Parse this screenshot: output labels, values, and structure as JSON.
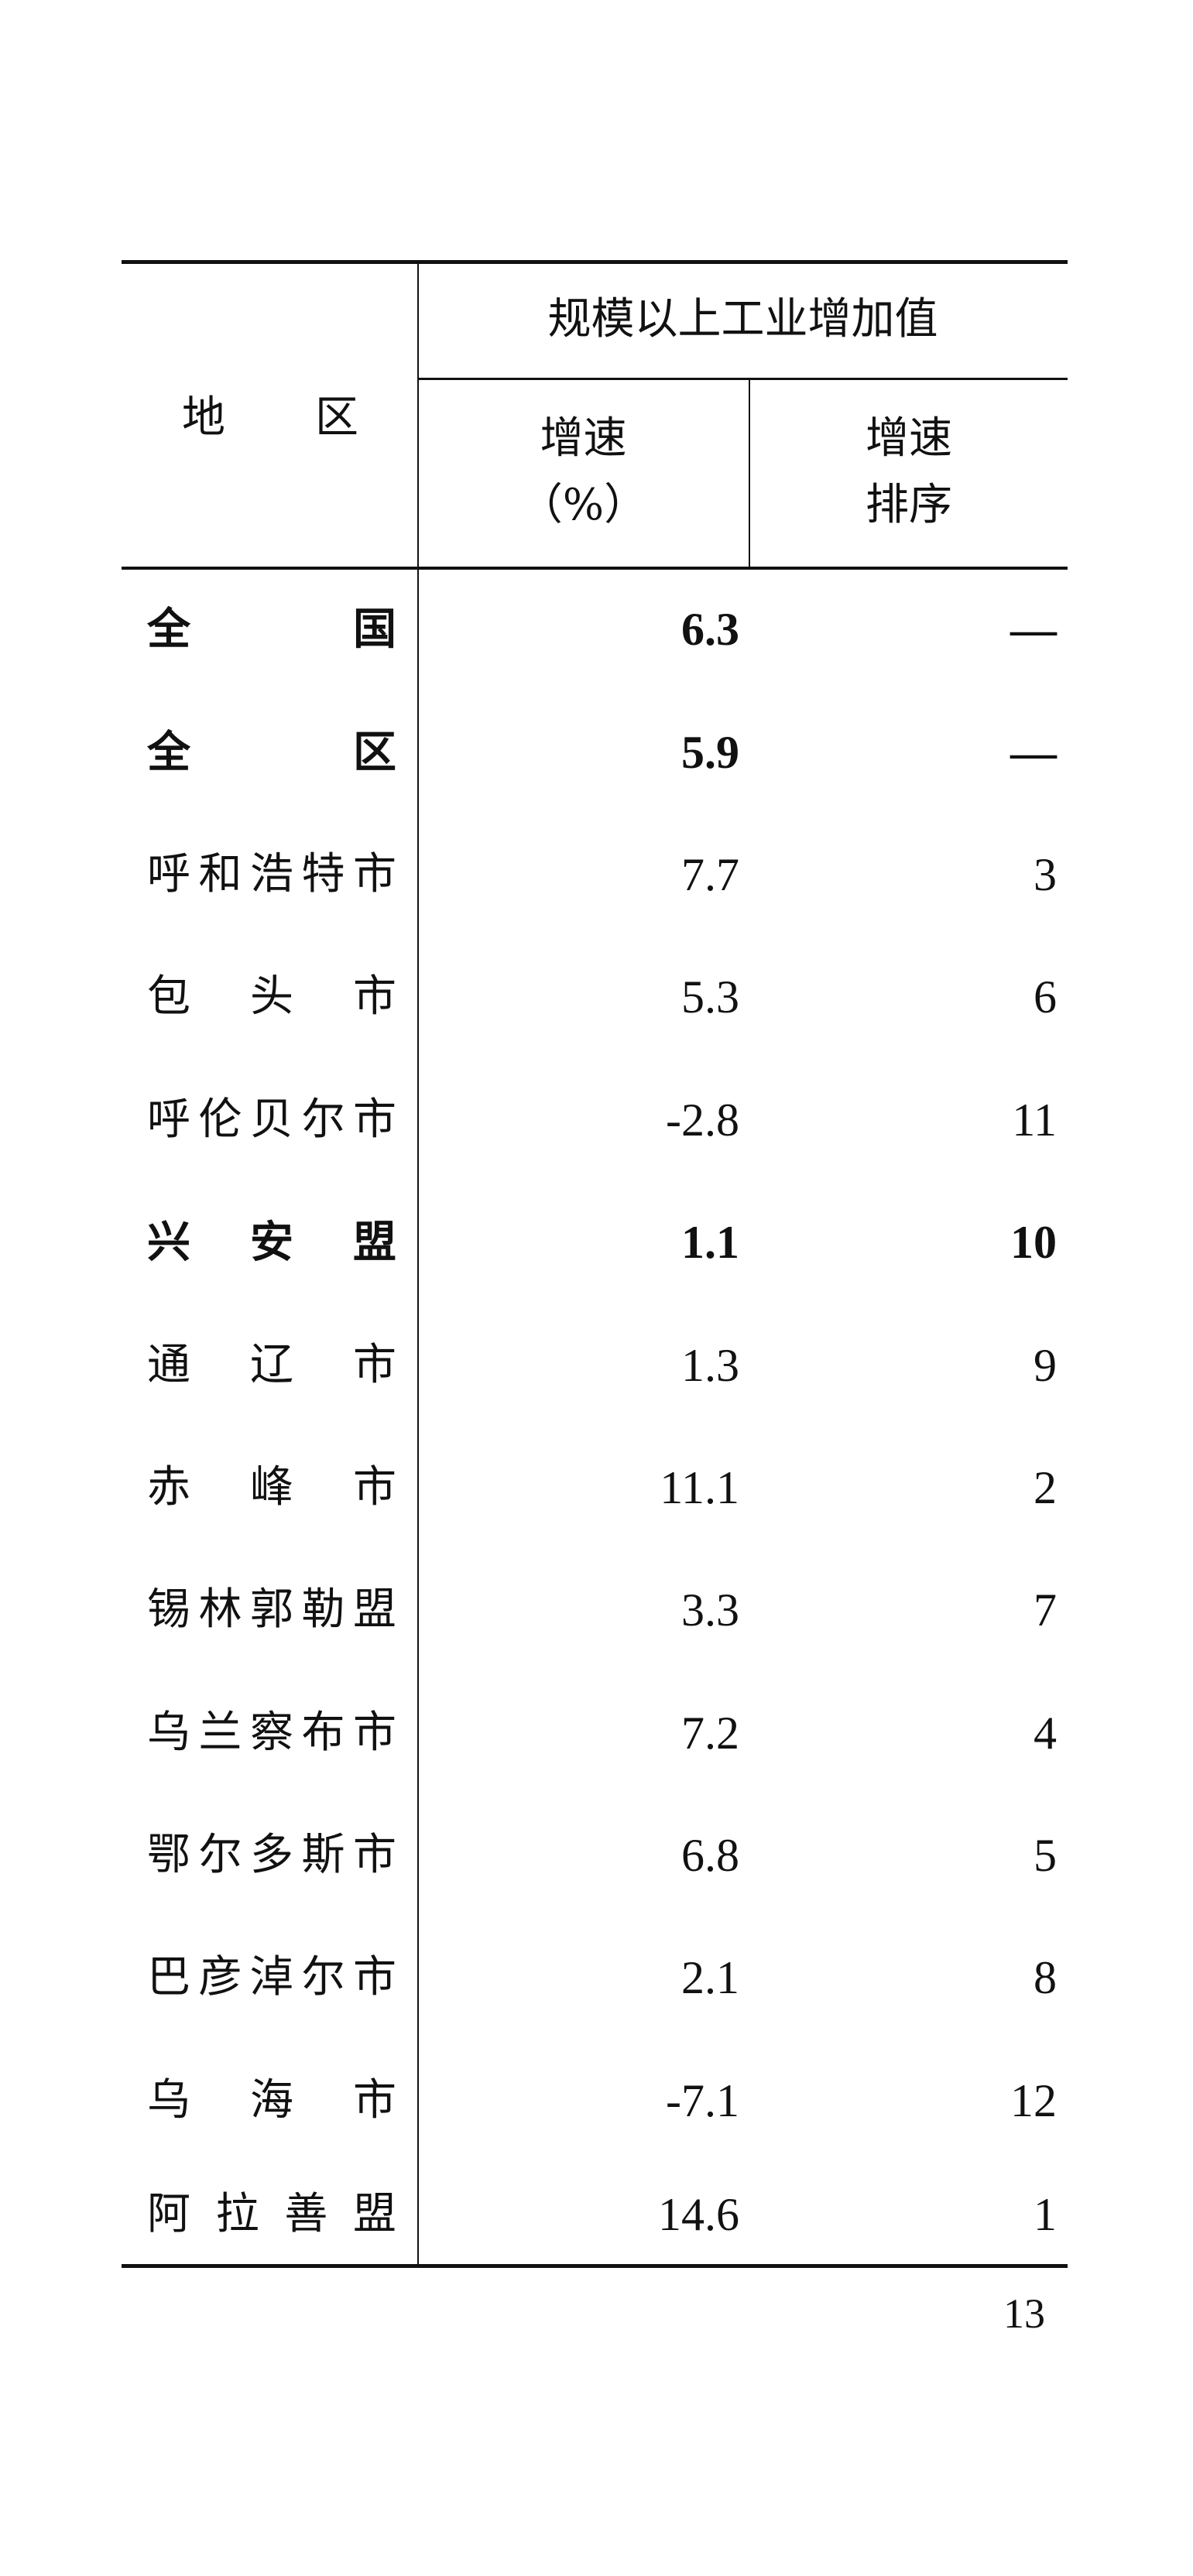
{
  "table": {
    "header": {
      "region": [
        "地",
        "区"
      ],
      "group": "规模以上工业增加值",
      "growth": [
        "增速",
        "（%）"
      ],
      "rank": [
        "增速",
        "排序"
      ]
    },
    "rows": [
      {
        "region": "全国",
        "growth": "6.3",
        "rank": "—",
        "bold": true
      },
      {
        "region": "全区",
        "growth": "5.9",
        "rank": "—",
        "bold": true
      },
      {
        "region": "呼和浩特市",
        "growth": "7.7",
        "rank": "3",
        "bold": false
      },
      {
        "region": "包头市",
        "growth": "5.3",
        "rank": "6",
        "bold": false
      },
      {
        "region": "呼伦贝尔市",
        "growth": "-2.8",
        "rank": "11",
        "bold": false
      },
      {
        "region": "兴安盟",
        "growth": "1.1",
        "rank": "10",
        "bold": true
      },
      {
        "region": "通辽市",
        "growth": "1.3",
        "rank": "9",
        "bold": false
      },
      {
        "region": "赤峰市",
        "growth": "11.1",
        "rank": "2",
        "bold": false
      },
      {
        "region": "锡林郭勒盟",
        "growth": "3.3",
        "rank": "7",
        "bold": false
      },
      {
        "region": "乌兰察布市",
        "growth": "7.2",
        "rank": "4",
        "bold": false
      },
      {
        "region": "鄂尔多斯市",
        "growth": "6.8",
        "rank": "5",
        "bold": false
      },
      {
        "region": "巴彦淖尔市",
        "growth": "2.1",
        "rank": "8",
        "bold": false
      },
      {
        "region": "乌海市",
        "growth": "-7.1",
        "rank": "12",
        "bold": false
      },
      {
        "region": "阿拉善盟",
        "growth": "14.6",
        "rank": "1",
        "bold": false
      }
    ]
  },
  "page_number": "13"
}
